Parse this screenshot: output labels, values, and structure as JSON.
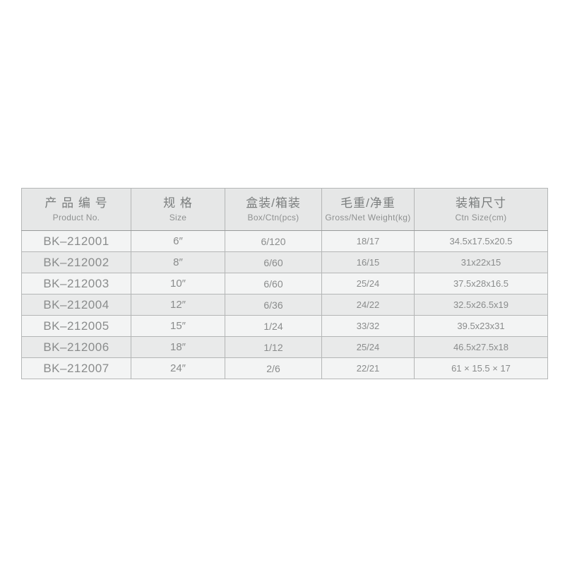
{
  "document": {
    "background_color": "#ffffff",
    "text_color": "#8a8c8c",
    "header_bg_color": "#e6e7e7",
    "row_odd_bg_color": "#f3f4f4",
    "row_even_bg_color": "#e9eaea",
    "border_color": "#b4b6b6"
  },
  "table": {
    "columns": [
      {
        "zh": "产 品 编 号",
        "en": "Product No."
      },
      {
        "zh": "规 格",
        "en": "Size"
      },
      {
        "zh": "盒装/箱装",
        "en": "Box/Ctn(pcs)"
      },
      {
        "zh": "毛重/净重",
        "en": "Gross/Net Weight(kg)"
      },
      {
        "zh": "装箱尺寸",
        "en": "Ctn Size(cm)"
      }
    ],
    "rows": [
      [
        "BK–212001",
        "6″",
        "6/120",
        "18/17",
        "34.5x17.5x20.5"
      ],
      [
        "BK–212002",
        "8″",
        "6/60",
        "16/15",
        "31x22x15"
      ],
      [
        "BK–212003",
        "10″",
        "6/60",
        "25/24",
        "37.5x28x16.5"
      ],
      [
        "BK–212004",
        "12″",
        "6/36",
        "24/22",
        "32.5x26.5x19"
      ],
      [
        "BK–212005",
        "15″",
        "1/24",
        "33/32",
        "39.5x23x31"
      ],
      [
        "BK–212006",
        "18″",
        "1/12",
        "25/24",
        "46.5x27.5x18"
      ],
      [
        "BK–212007",
        "24″",
        "2/6",
        "22/21",
        "61 × 15.5 × 17"
      ]
    ]
  }
}
